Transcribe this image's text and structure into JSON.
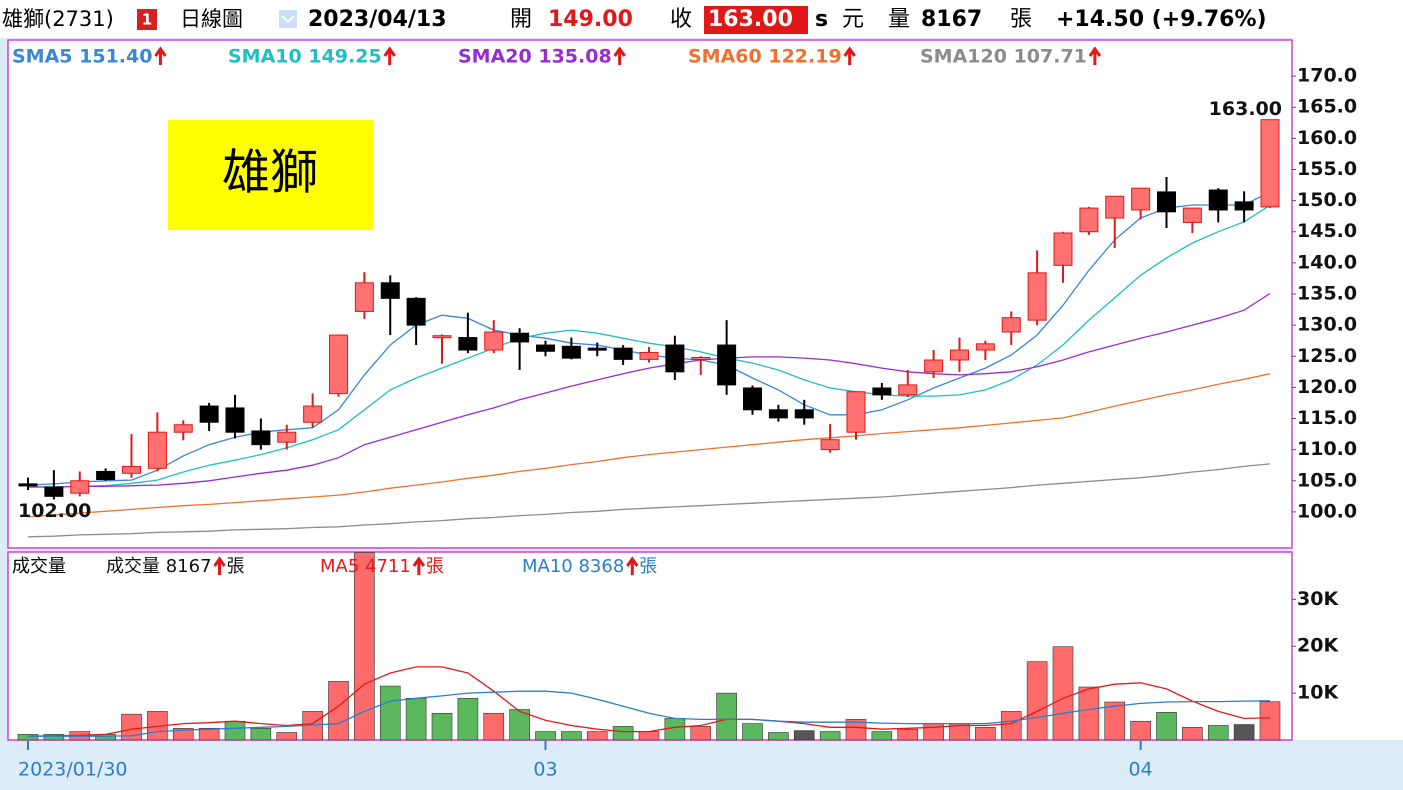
{
  "header": {
    "name": "雄獅(2731)",
    "badge": "1",
    "period": "日線圖",
    "date": "2023/04/13",
    "open_label": "開",
    "open": "149.00",
    "close_label": "收",
    "close": "163.00",
    "s": "s",
    "currency": "元",
    "volume_label": "量",
    "volume": "8167",
    "volume_unit": "張",
    "change": "+14.50 (+9.76%)"
  },
  "chart_data": [
    {
      "type": "candlestick",
      "stock_label": "雄獅",
      "max_label": "163.00",
      "min_label": "102.00",
      "up_color": "#ff7070",
      "up_edge": "#e01818",
      "down_color": "#000000",
      "ylim": [
        94.2,
        175.8
      ],
      "yticks": [
        {
          "value": 100,
          "label": "100.0"
        },
        {
          "value": 105,
          "label": "105.0"
        },
        {
          "value": 110,
          "label": "110.0"
        },
        {
          "value": 115,
          "label": "115.0"
        },
        {
          "value": 120,
          "label": "120.0"
        },
        {
          "value": 125,
          "label": "125.0"
        },
        {
          "value": 130,
          "label": "130.0"
        },
        {
          "value": 135,
          "label": "135.0"
        },
        {
          "value": 140,
          "label": "140.0"
        },
        {
          "value": 145,
          "label": "145.0"
        },
        {
          "value": 150,
          "label": "150.0"
        },
        {
          "value": 155,
          "label": "155.0"
        },
        {
          "value": 160,
          "label": "160.0"
        },
        {
          "value": 165,
          "label": "165.0"
        },
        {
          "value": 170,
          "label": "170.0"
        }
      ],
      "open": [
        104.5,
        104,
        103,
        106.5,
        106.2,
        107,
        112.8,
        117,
        116.7,
        113,
        111.2,
        114.4,
        119,
        132.2,
        136.8,
        134.3,
        128,
        128,
        126,
        128.7,
        126.8,
        126.6,
        126.3,
        126.3,
        124.5,
        126.8,
        124.5,
        126.8,
        119.9,
        116.4,
        116.4,
        110,
        112.8,
        119.9,
        118.8,
        122.5,
        124.4,
        126,
        128.9,
        130.8,
        139.6,
        145,
        147.2,
        148.5,
        151.4,
        146.5,
        151.7,
        149.8,
        149
      ],
      "high": [
        105.5,
        106.7,
        106.5,
        107,
        112.5,
        116,
        114.7,
        117.5,
        118.8,
        115,
        114,
        119,
        128.5,
        138.5,
        138,
        134.5,
        128.5,
        132,
        130.8,
        129.5,
        127.5,
        128,
        127.2,
        126.8,
        126.5,
        128.3,
        125,
        130.8,
        120.3,
        117.2,
        118,
        114.1,
        119.3,
        120.7,
        122.8,
        126,
        128,
        127.5,
        132.2,
        142,
        145,
        149,
        150.7,
        152,
        153.8,
        148.8,
        152,
        151.5,
        163
      ],
      "low": [
        103.5,
        102,
        102.5,
        105,
        105.5,
        106.5,
        111.5,
        113,
        111.8,
        110,
        110,
        113.5,
        118.5,
        131,
        128.4,
        126.8,
        123.8,
        125.5,
        125.5,
        122.8,
        125,
        124.5,
        125,
        123.6,
        124,
        121.2,
        122,
        118.8,
        115.6,
        114.5,
        114,
        109.5,
        111.6,
        118,
        118.4,
        121.5,
        122.5,
        124.4,
        126.8,
        130,
        136.8,
        144.5,
        142.4,
        147,
        145.6,
        144.8,
        146.5,
        146.5,
        148.8
      ],
      "close": [
        104.5,
        102.5,
        105,
        105.2,
        107.3,
        112.8,
        114,
        114.4,
        112.8,
        110.8,
        112.8,
        117,
        128.4,
        136.8,
        134.3,
        130,
        128.3,
        126,
        128.9,
        127.3,
        125.8,
        124.7,
        126.3,
        124.5,
        125.6,
        122.5,
        124.8,
        120.4,
        116.4,
        115.1,
        115.1,
        111.6,
        119.3,
        118.8,
        120.4,
        124.4,
        126,
        127,
        131.2,
        138.4,
        144.8,
        148.8,
        150.7,
        152,
        148.2,
        148.8,
        148.5,
        148.5,
        163
      ],
      "series": [
        {
          "name": "SMA5 151.40",
          "color": "#3a86d8",
          "values": [
            104.3,
            104.5,
            104.8,
            105,
            105.1,
            106.7,
            109,
            110.8,
            112,
            112.8,
            113.2,
            113.5,
            116.4,
            122,
            126.8,
            130,
            131.6,
            131.1,
            129.2,
            128.4,
            127.9,
            127.1,
            126.8,
            126,
            125.2,
            124.7,
            124.4,
            123.6,
            121.5,
            119.6,
            117.2,
            115.6,
            115.6,
            116.4,
            118,
            119.9,
            121.5,
            123.1,
            125.2,
            128.4,
            133.2,
            138.8,
            143.7,
            147.2,
            148.8,
            149.3,
            149.3,
            149.3,
            151.4
          ]
        },
        {
          "name": "SMA10 149.25",
          "color": "#1fbfc4",
          "values": [
            104,
            104,
            104.1,
            104.2,
            104.6,
            105.1,
            106.4,
            107.5,
            108.3,
            109.2,
            110.3,
            111.6,
            113.2,
            116.4,
            119.6,
            121.5,
            123.1,
            124.7,
            126.3,
            127.9,
            128.7,
            129.2,
            128.7,
            127.9,
            127.1,
            126.5,
            125.7,
            124.7,
            123.9,
            122.8,
            121.2,
            119.9,
            119.3,
            118.8,
            118.6,
            118.6,
            118.8,
            119.6,
            121.2,
            123.6,
            126.8,
            130.8,
            134.4,
            138,
            140.8,
            143.2,
            145,
            146.6,
            149.25
          ]
        },
        {
          "name": "SMA20 135.08",
          "color": "#9a2bd4",
          "values": [
            104,
            104,
            104.1,
            104.1,
            104.2,
            104.3,
            104.6,
            105,
            105.6,
            106.2,
            106.7,
            107.5,
            108.7,
            110.8,
            112,
            113.2,
            114.4,
            115.6,
            116.7,
            118,
            119.1,
            120.2,
            121.2,
            122.2,
            123.1,
            123.8,
            124.4,
            124.7,
            124.9,
            124.9,
            124.7,
            124.4,
            123.8,
            123.1,
            122.5,
            122.2,
            122,
            122.2,
            122.5,
            123.3,
            124.4,
            125.7,
            126.8,
            127.9,
            128.9,
            130,
            131.1,
            132.4,
            135.08
          ]
        },
        {
          "name": "SMA60 122.19",
          "color": "#f07030",
          "values": [
            99.2,
            99.5,
            99.8,
            100.1,
            100.4,
            100.7,
            101.0,
            101.2,
            101.5,
            101.8,
            102.1,
            102.4,
            102.7,
            103.2,
            103.8,
            104.3,
            104.8,
            105.4,
            105.9,
            106.5,
            107.0,
            107.6,
            108.1,
            108.7,
            109.2,
            109.6,
            110.0,
            110.4,
            110.8,
            111.2,
            111.6,
            111.9,
            112.2,
            112.6,
            112.9,
            113.2,
            113.5,
            113.9,
            114.3,
            114.7,
            115.1,
            116.0,
            117.0,
            117.9,
            118.8,
            119.6,
            120.5,
            121.3,
            122.19
          ]
        },
        {
          "name": "SMA120 107.71",
          "color": "#8c8c8c",
          "values": [
            96.0,
            96.1,
            96.3,
            96.4,
            96.5,
            96.7,
            96.8,
            96.9,
            97.1,
            97.2,
            97.3,
            97.5,
            97.6,
            97.9,
            98.1,
            98.4,
            98.6,
            98.9,
            99.1,
            99.4,
            99.6,
            99.9,
            100.1,
            100.4,
            100.6,
            100.8,
            101.0,
            101.2,
            101.4,
            101.6,
            101.8,
            102.0,
            102.2,
            102.4,
            102.7,
            103.0,
            103.3,
            103.6,
            103.9,
            104.3,
            104.6,
            104.9,
            105.2,
            105.5,
            105.9,
            106.4,
            106.8,
            107.3,
            107.71
          ]
        }
      ]
    },
    {
      "type": "bar",
      "title": "成交量",
      "unit": "張",
      "categories": [
        "2023/01/30",
        null,
        null,
        null,
        null,
        null,
        null,
        null,
        null,
        null,
        null,
        null,
        null,
        null,
        null,
        null,
        null,
        null,
        null,
        null,
        "03",
        null,
        null,
        null,
        null,
        null,
        null,
        null,
        null,
        null,
        null,
        null,
        null,
        null,
        null,
        null,
        null,
        null,
        null,
        null,
        null,
        null,
        null,
        "04",
        null,
        null,
        null,
        null,
        null
      ],
      "ylim": [
        0,
        40100
      ],
      "yticks": [
        {
          "value": 10000,
          "label": "10K"
        },
        {
          "value": 20000,
          "label": "20K"
        },
        {
          "value": 30000,
          "label": "30K"
        }
      ],
      "series": [
        {
          "name": "成交量 8167",
          "color": "#111111",
          "values": [
            1200,
            1200,
            1800,
            1200,
            5500,
            6100,
            2500,
            2500,
            4000,
            2500,
            1600,
            6100,
            12500,
            40000,
            11500,
            8900,
            5700,
            8900,
            5700,
            6500,
            1800,
            1800,
            1800,
            2900,
            1800,
            4600,
            2900,
            10000,
            3500,
            1600,
            2000,
            1800,
            4400,
            1800,
            2300,
            3500,
            3500,
            2700,
            6100,
            16700,
            19900,
            11300,
            8100,
            4000,
            5900,
            2700,
            3100,
            3300,
            8167
          ],
          "colors": [
            "#5cb85c",
            "#5cb85c",
            "#ff6b6b",
            "#5cb85c",
            "#ff6b6b",
            "#ff6b6b",
            "#ff6b6b",
            "#ff6b6b",
            "#5cb85c",
            "#5cb85c",
            "#ff6b6b",
            "#ff6b6b",
            "#ff6b6b",
            "#ff6b6b",
            "#5cb85c",
            "#5cb85c",
            "#5cb85c",
            "#5cb85c",
            "#ff6b6b",
            "#5cb85c",
            "#5cb85c",
            "#5cb85c",
            "#ff6b6b",
            "#5cb85c",
            "#ff6b6b",
            "#5cb85c",
            "#ff6b6b",
            "#5cb85c",
            "#5cb85c",
            "#5cb85c",
            "#555555",
            "#5cb85c",
            "#ff6b6b",
            "#5cb85c",
            "#ff6b6b",
            "#ff6b6b",
            "#ff6b6b",
            "#ff6b6b",
            "#ff6b6b",
            "#ff6b6b",
            "#ff6b6b",
            "#ff6b6b",
            "#ff6b6b",
            "#ff6b6b",
            "#5cb85c",
            "#ff6b6b",
            "#5cb85c",
            "#555555",
            "#ff6b6b"
          ]
        },
        {
          "name": "MA5 4711",
          "type": "line",
          "color": "#e81818",
          "values": [
            800,
            900,
            1000,
            1200,
            2300,
            2900,
            3500,
            3700,
            4000,
            3500,
            3100,
            3500,
            7200,
            11900,
            14300,
            15600,
            15600,
            14300,
            10400,
            6100,
            4200,
            3100,
            2300,
            1800,
            1800,
            2700,
            3100,
            4400,
            4400,
            4000,
            3500,
            2700,
            2700,
            2300,
            2500,
            2700,
            3100,
            3100,
            3500,
            6100,
            8900,
            10900,
            11900,
            12200,
            10900,
            8300,
            6100,
            4600,
            4711
          ]
        },
        {
          "name": "MA10 8368",
          "type": "line",
          "color": "#2a7fc8",
          "values": [
            800,
            800,
            800,
            800,
            900,
            1800,
            2100,
            2300,
            2500,
            2700,
            2900,
            3200,
            3500,
            6100,
            8300,
            8900,
            9400,
            10000,
            10200,
            10400,
            10400,
            10000,
            8700,
            7200,
            5700,
            4600,
            4400,
            4400,
            4400,
            4000,
            3800,
            3800,
            3800,
            3600,
            3500,
            3500,
            3500,
            3500,
            4000,
            4800,
            5700,
            6500,
            7200,
            7800,
            8100,
            8200,
            8200,
            8300,
            8368
          ]
        }
      ]
    }
  ]
}
